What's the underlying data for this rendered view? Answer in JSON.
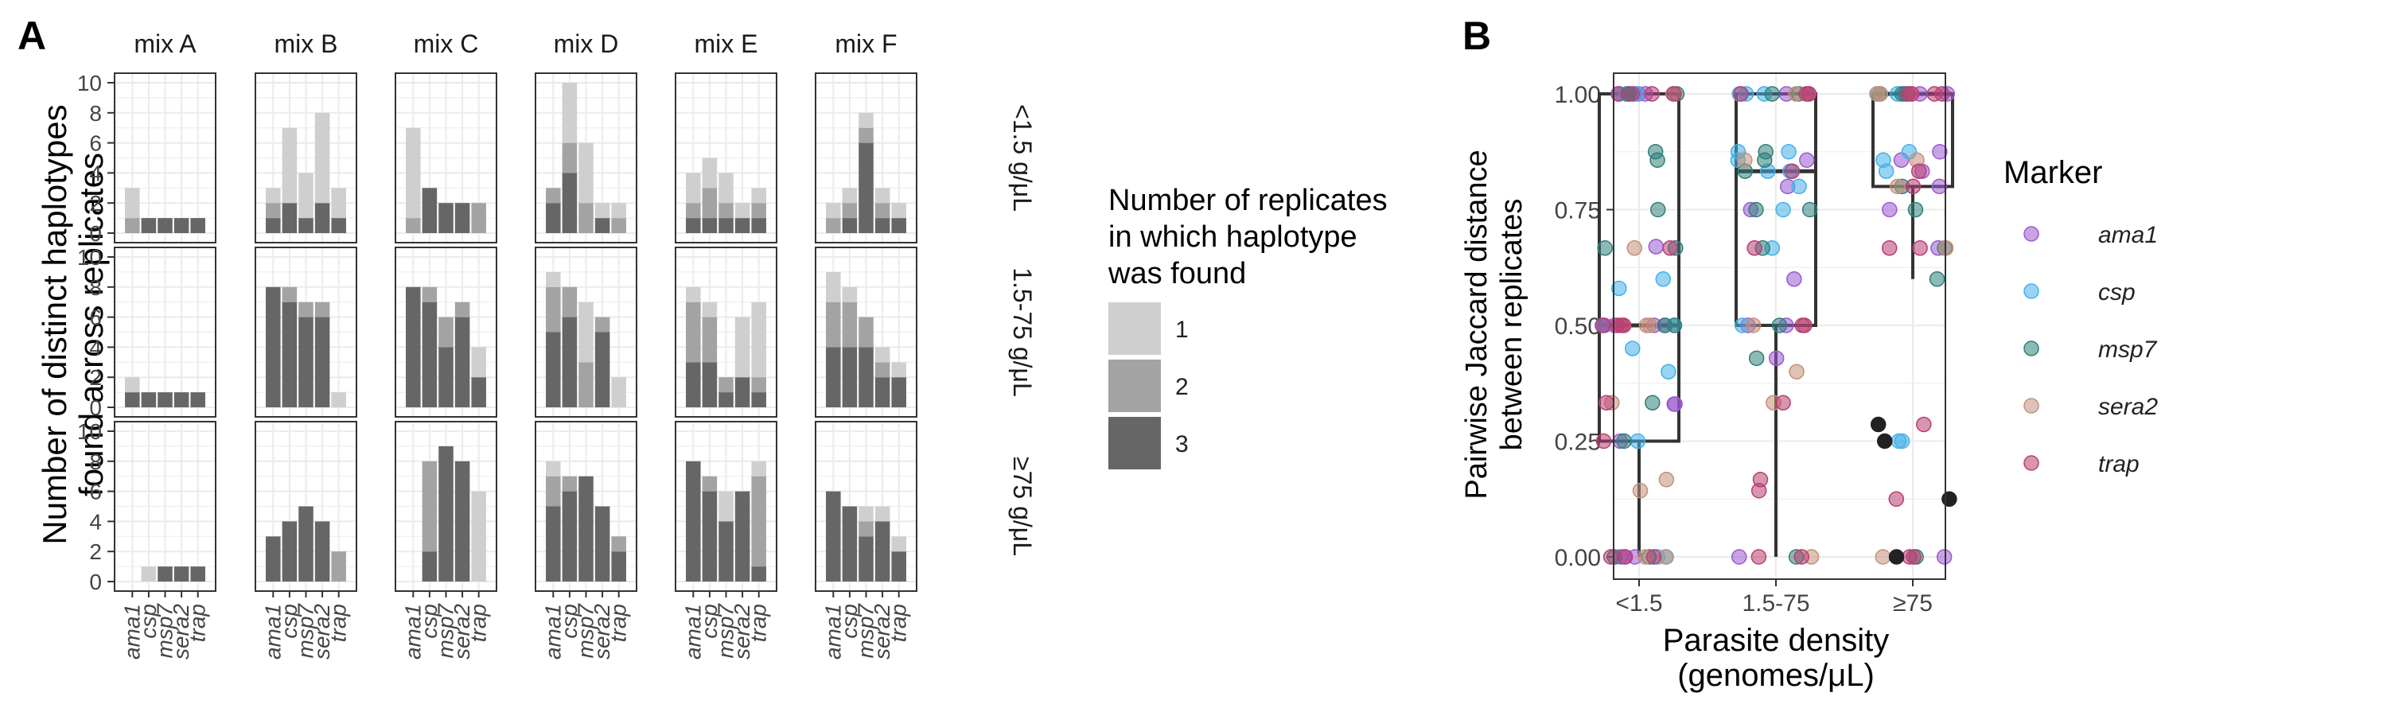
{
  "panel_labels": {
    "a": "A",
    "b": "B"
  },
  "colors": {
    "n1": "#cfcfcf",
    "n2": "#a3a3a3",
    "n3": "#666666",
    "ama1": "#9b59d0",
    "csp": "#43b1e8",
    "msp7": "#2f7f7a",
    "sera2": "#c4907a",
    "trap": "#b83e72",
    "box": "#333333",
    "black": "#222222"
  },
  "chart_data": [
    {
      "type": "bar",
      "stacked": true,
      "ylabel": [
        "Number of distinct haplotypes",
        "found across replicates"
      ],
      "columns": [
        "mix A",
        "mix B",
        "mix C",
        "mix D",
        "mix E",
        "mix F"
      ],
      "rows": [
        "<1.5 g/μL",
        "1.5-75  g/μL",
        "≥75  g/μL"
      ],
      "categories": [
        "ama1",
        "csp",
        "msp7",
        "sera2",
        "trap"
      ],
      "ylim": [
        0,
        10
      ],
      "yticks": [
        "0",
        "2",
        "4",
        "6",
        "8",
        "10"
      ],
      "legend": {
        "title": [
          "Number of replicates",
          "in which haplotype",
          "was found"
        ],
        "labels": [
          "1",
          "2",
          "3"
        ]
      },
      "panels": [
        [
          [
            [
              0,
              1,
              2
            ],
            [
              1,
              0,
              0
            ],
            [
              1,
              0,
              0
            ],
            [
              1,
              0,
              0
            ],
            [
              1,
              0,
              0
            ]
          ],
          [
            [
              1,
              1,
              1
            ],
            [
              2,
              0,
              5
            ],
            [
              1,
              0,
              3
            ],
            [
              2,
              0,
              6
            ],
            [
              1,
              0,
              2
            ]
          ],
          [
            [
              0,
              1,
              6
            ],
            [
              3,
              0,
              0
            ],
            [
              2,
              0,
              0
            ],
            [
              2,
              0,
              0
            ],
            [
              0,
              2,
              0
            ]
          ],
          [
            [
              2,
              1,
              0
            ],
            [
              4,
              2,
              4
            ],
            [
              0,
              2,
              4
            ],
            [
              1,
              0,
              1
            ],
            [
              0,
              1,
              1
            ]
          ],
          [
            [
              1,
              1,
              2
            ],
            [
              1,
              2,
              2
            ],
            [
              1,
              1,
              2
            ],
            [
              1,
              0,
              1
            ],
            [
              1,
              1,
              1
            ]
          ],
          [
            [
              0,
              1,
              1
            ],
            [
              1,
              1,
              1
            ],
            [
              6,
              1,
              1
            ],
            [
              1,
              1,
              1
            ],
            [
              1,
              0,
              1
            ]
          ]
        ],
        [
          [
            [
              1,
              0,
              1
            ],
            [
              1,
              0,
              0
            ],
            [
              1,
              0,
              0
            ],
            [
              1,
              0,
              0
            ],
            [
              1,
              0,
              0
            ]
          ],
          [
            [
              8,
              0,
              0
            ],
            [
              7,
              1,
              0
            ],
            [
              6,
              1,
              0
            ],
            [
              6,
              1,
              0
            ],
            [
              0,
              0,
              1
            ]
          ],
          [
            [
              8,
              0,
              0
            ],
            [
              7,
              1,
              0
            ],
            [
              4,
              2,
              0
            ],
            [
              6,
              1,
              0
            ],
            [
              2,
              0,
              2
            ]
          ],
          [
            [
              5,
              3,
              1
            ],
            [
              6,
              2,
              0
            ],
            [
              0,
              3,
              4
            ],
            [
              5,
              1,
              0
            ],
            [
              0,
              0,
              2
            ]
          ],
          [
            [
              3,
              4,
              1
            ],
            [
              3,
              3,
              1
            ],
            [
              1,
              1,
              0
            ],
            [
              2,
              0,
              4
            ],
            [
              1,
              1,
              5
            ]
          ],
          [
            [
              4,
              3,
              2
            ],
            [
              4,
              3,
              1
            ],
            [
              4,
              2,
              0
            ],
            [
              2,
              1,
              1
            ],
            [
              2,
              0,
              1
            ]
          ]
        ],
        [
          [
            [
              0,
              0,
              0
            ],
            [
              0,
              0,
              1
            ],
            [
              1,
              0,
              0
            ],
            [
              1,
              0,
              0
            ],
            [
              1,
              0,
              0
            ]
          ],
          [
            [
              3,
              0,
              0
            ],
            [
              4,
              0,
              0
            ],
            [
              5,
              0,
              0
            ],
            [
              4,
              0,
              0
            ],
            [
              0,
              2,
              0
            ]
          ],
          [
            [
              0,
              0,
              0
            ],
            [
              2,
              6,
              0
            ],
            [
              9,
              0,
              0
            ],
            [
              8,
              0,
              0
            ],
            [
              0,
              0,
              6
            ]
          ],
          [
            [
              5,
              2,
              1
            ],
            [
              6,
              1,
              0
            ],
            [
              7,
              0,
              0
            ],
            [
              5,
              0,
              0
            ],
            [
              2,
              1,
              0
            ]
          ],
          [
            [
              8,
              0,
              0
            ],
            [
              6,
              1,
              0
            ],
            [
              4,
              0,
              2
            ],
            [
              6,
              0,
              0
            ],
            [
              1,
              6,
              1
            ]
          ],
          [
            [
              6,
              0,
              0
            ],
            [
              5,
              0,
              0
            ],
            [
              3,
              1,
              1
            ],
            [
              4,
              0,
              1
            ],
            [
              2,
              0,
              1
            ]
          ]
        ]
      ]
    },
    {
      "type": "scatter",
      "subtype": "boxplot-with-jitter",
      "xlabel": [
        "Parasite density",
        "(genomes/μL)"
      ],
      "ylabel": [
        "Pairwise Jaccard distance",
        "between replicates"
      ],
      "categories": [
        "<1.5",
        "1.5-75",
        "≥75"
      ],
      "ylim": [
        0,
        1
      ],
      "yticks": [
        "0.00",
        "0.25",
        "0.50",
        "0.75",
        "1.00"
      ],
      "legend": {
        "title": "Marker",
        "labels": [
          "ama1",
          "csp",
          "msp7",
          "sera2",
          "trap"
        ]
      },
      "boxes": [
        {
          "q1": 0.25,
          "median": 0.5,
          "q3": 1.0,
          "lower": 0.0,
          "upper": 1.0
        },
        {
          "q1": 0.5,
          "median": 0.833,
          "q3": 1.0,
          "lower": 0.0,
          "upper": 1.0
        },
        {
          "q1": 0.8,
          "median": 1.0,
          "q3": 1.0,
          "lower": 0.6,
          "upper": 1.0
        }
      ],
      "points": [
        [
          {
            "m": "ama1",
            "v": [
              1.0,
              1.0,
              1.0,
              0.5,
              0.5,
              0.5,
              0.33,
              0.25,
              0.0,
              0.0,
              0.67,
              0.5,
              0.33,
              0.0,
              1.0,
              0.5
            ]
          },
          {
            "m": "csp",
            "v": [
              1.0,
              1.0,
              0.5,
              0.5,
              0.6,
              0.58,
              0.4,
              0.45,
              0.25,
              0.0,
              0.0,
              1.0
            ]
          },
          {
            "m": "msp7",
            "v": [
              1.0,
              1.0,
              0.875,
              0.857,
              0.75,
              0.667,
              0.667,
              0.5,
              0.5,
              0.333,
              0.25,
              0.0,
              0.0,
              1.0
            ]
          },
          {
            "m": "sera2",
            "v": [
              1.0,
              0.5,
              0.5,
              0.5,
              0.333,
              0.167,
              0.143,
              0.0,
              0.0,
              0.667
            ]
          },
          {
            "m": "trap",
            "v": [
              1.0,
              1.0,
              1.0,
              0.667,
              0.5,
              0.5,
              0.5,
              0.5,
              0.333,
              0.25,
              0.0,
              0.0,
              0.0,
              1.0
            ]
          }
        ],
        [
          {
            "m": "ama1",
            "v": [
              1.0,
              0.857,
              0.8,
              0.75,
              0.6,
              0.5,
              0.5,
              0.429,
              0.0,
              1.0
            ]
          },
          {
            "m": "csp",
            "v": [
              1.0,
              1.0,
              0.875,
              0.875,
              0.857,
              0.833,
              0.833,
              0.8,
              0.75,
              0.667,
              0.5,
              1.0
            ]
          },
          {
            "m": "msp7",
            "v": [
              1.0,
              0.875,
              0.857,
              0.833,
              0.75,
              0.75,
              0.667,
              0.5,
              0.429,
              0.0,
              1.0
            ]
          },
          {
            "m": "sera2",
            "v": [
              1.0,
              0.857,
              0.5,
              0.4,
              0.333,
              0.0,
              1.0
            ]
          },
          {
            "m": "trap",
            "v": [
              1.0,
              1.0,
              0.833,
              0.667,
              0.5,
              0.5,
              0.333,
              0.167,
              0.143,
              0.0,
              0.0,
              1.0
            ]
          }
        ],
        [
          {
            "m": "ama1",
            "v": [
              1.0,
              0.875,
              0.857,
              0.833,
              0.8,
              0.75,
              0.667,
              0.0,
              1.0
            ]
          },
          {
            "m": "csp",
            "v": [
              1.0,
              1.0,
              0.875,
              0.857,
              0.833,
              0.25,
              0.25,
              1.0
            ]
          },
          {
            "m": "msp7",
            "v": [
              1.0,
              1.0,
              0.8,
              0.75,
              0.667,
              0.6,
              0.0,
              1.0
            ]
          },
          {
            "m": "sera2",
            "v": [
              1.0,
              1.0,
              0.857,
              0.8,
              0.667,
              0.0,
              1.0
            ]
          },
          {
            "m": "trap",
            "v": [
              1.0,
              1.0,
              1.0,
              0.833,
              0.8,
              0.667,
              0.667,
              0.286,
              0.125,
              0.0,
              0.0,
              1.0
            ]
          },
          {
            "m": "black",
            "v": [
              0.286,
              0.25,
              0.125,
              0.0
            ]
          }
        ]
      ]
    }
  ]
}
